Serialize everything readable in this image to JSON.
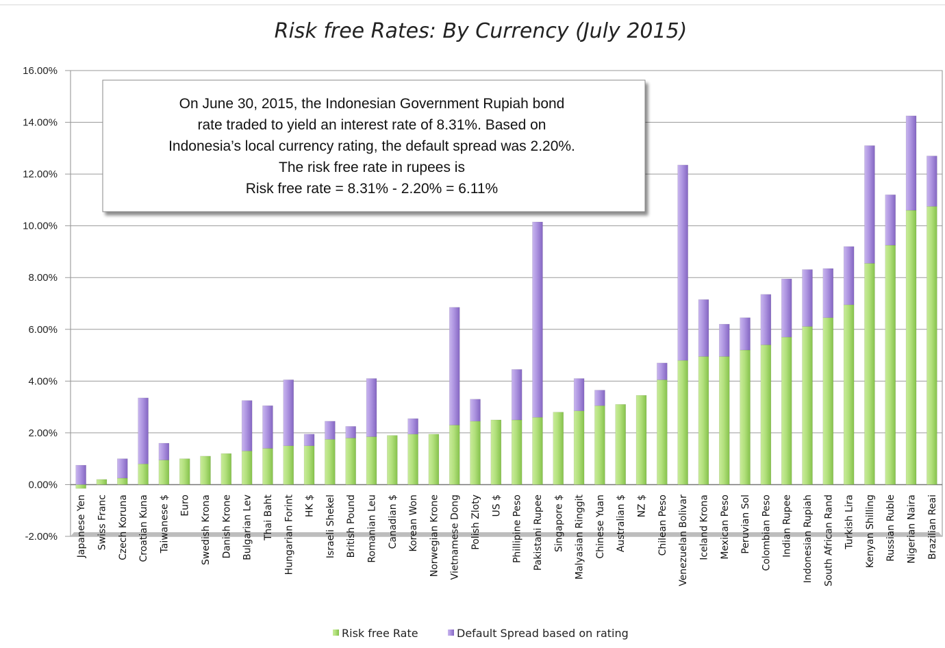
{
  "chart_data": {
    "type": "bar",
    "stacked": true,
    "title": "Risk free Rates: By Currency (July 2015)",
    "xlabel": "",
    "ylabel": "",
    "ylim": [
      -0.02,
      0.16
    ],
    "yticks": [
      "-2.00%",
      "0.00%",
      "2.00%",
      "4.00%",
      "6.00%",
      "8.00%",
      "10.00%",
      "12.00%",
      "14.00%",
      "16.00%"
    ],
    "grid": true,
    "legend_position": "bottom",
    "categories": [
      "Japanese Yen",
      "Swiss Franc",
      "Czech Koruna",
      "Croatian Kuna",
      "Taiwanese $",
      "Euro",
      "Swedish Krona",
      "Danish Krone",
      "Bulgarian Lev",
      "Thai Baht",
      "Hungarian Forint",
      "HK $",
      "Israeli Shekel",
      "British Pound",
      "Romanian Leu",
      "Canadian $",
      "Korean Won",
      "Norwegian Krone",
      "Vietnamese Dong",
      "Polish Zloty",
      "US $",
      "Phillipine Peso",
      "Pakistani Rupee",
      "Singapore $",
      "Malyasian Ringgit",
      "Chinese Yuan",
      "Australian $",
      "NZ $",
      "Chilean Peso",
      "Venezuelan Bolivar",
      "Iceland Krona",
      "Mexican Peso",
      "Peruvian Sol",
      "Colombian Peso",
      "Indian Rupee",
      "Indonesian Rupiah",
      "South African Rand",
      "Turkish Lira",
      "Kenyan Shilling",
      "Russian Ruble",
      "Nigerian Naira",
      "Brazilian Reai"
    ],
    "series": [
      {
        "name": "Risk free Rate",
        "color": "#a6d96a",
        "values": [
          -0.0015,
          0.002,
          0.0025,
          0.008,
          0.0095,
          0.01,
          0.011,
          0.012,
          0.013,
          0.014,
          0.015,
          0.015,
          0.0175,
          0.018,
          0.0185,
          0.019,
          0.0195,
          0.0195,
          0.023,
          0.0245,
          0.025,
          0.025,
          0.026,
          0.028,
          0.0285,
          0.0305,
          0.031,
          0.0345,
          0.0405,
          0.048,
          0.0495,
          0.0495,
          0.052,
          0.054,
          0.057,
          0.0611,
          0.0645,
          0.0695,
          0.0855,
          0.0925,
          0.106,
          0.1075
        ]
      },
      {
        "name": "Default Spread based on rating",
        "color": "#a78bd8",
        "values": [
          0.0075,
          0,
          0.0075,
          0.0255,
          0.0065,
          0,
          0,
          0,
          0.0195,
          0.0165,
          0.0255,
          0.0045,
          0.007,
          0.0045,
          0.0225,
          0,
          0.006,
          0,
          0.0455,
          0.0085,
          0,
          0.0195,
          0.0755,
          0,
          0.0125,
          0.006,
          0,
          0,
          0.0065,
          0.0755,
          0.022,
          0.0125,
          0.0125,
          0.0195,
          0.0225,
          0.022,
          0.019,
          0.0225,
          0.0455,
          0.0195,
          0.0365,
          0.0195
        ]
      }
    ],
    "annotation": {
      "lines": [
        "On June 30, 2015, the Indonesian Government Rupiah bond",
        "rate traded to yield an interest rate of 8.31%. Based on",
        "Indonesia’s local currency rating, the default spread was 2.20%.",
        "The risk free rate in rupees is",
        "Risk free rate = 8.31% - 2.20% = 6.11%"
      ]
    }
  }
}
